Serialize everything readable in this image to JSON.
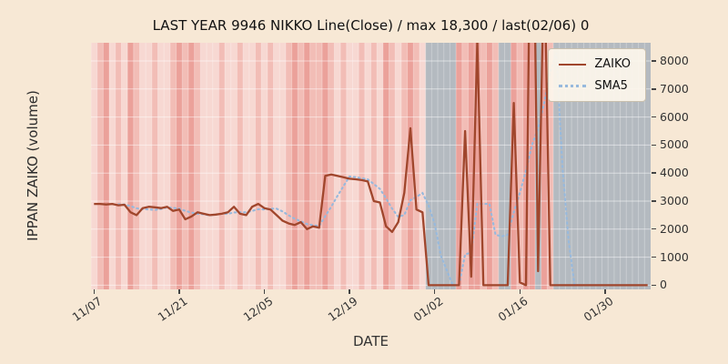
{
  "colors": {
    "figure_bg": "#f7e8d5",
    "tick_text": "#333333",
    "grid": "#ffffff"
  },
  "chart_data": {
    "type": "line",
    "title": "LAST YEAR 9946 NIKKO Line(Close) / max 18,300 / last(02/06) 0",
    "xlabel": "DATE",
    "ylabel": "IPPAN ZAIKO (volume)",
    "x_start": "11/07",
    "x_end": "02/06",
    "xticks": [
      "11/07",
      "11/21",
      "12/05",
      "12/19",
      "01/02",
      "01/16",
      "01/30"
    ],
    "xtick_days": [
      0,
      14,
      28,
      42,
      56,
      70,
      84
    ],
    "yticks": [
      0,
      1000,
      2000,
      3000,
      4000,
      5000,
      6000,
      7000,
      8000
    ],
    "ylim": [
      -150,
      8650
    ],
    "grid": true,
    "legend_position": "upper right",
    "max_value": 18300,
    "last_value": 0,
    "series": [
      {
        "name": "ZAIKO",
        "color": "#a0462c",
        "style": "solid",
        "values": [
          2900,
          2900,
          2880,
          2900,
          2850,
          2870,
          2600,
          2500,
          2750,
          2800,
          2780,
          2750,
          2800,
          2650,
          2700,
          2350,
          2450,
          2600,
          2550,
          2500,
          2520,
          2550,
          2600,
          2800,
          2550,
          2500,
          2800,
          2900,
          2750,
          2700,
          2500,
          2300,
          2200,
          2150,
          2250,
          2000,
          2100,
          2050,
          3900,
          3950,
          3900,
          3850,
          3800,
          3780,
          3750,
          3700,
          3000,
          2950,
          2100,
          1900,
          2250,
          3300,
          5600,
          2700,
          2600,
          0,
          0,
          0,
          0,
          0,
          0,
          5500,
          300,
          8700,
          0,
          0,
          0,
          0,
          0,
          6500,
          100,
          0,
          18300,
          500,
          12000,
          0,
          0,
          0,
          0,
          0,
          0,
          0,
          0,
          0,
          0,
          0,
          0,
          0,
          0,
          0,
          0,
          0
        ]
      },
      {
        "name": "SMA5",
        "color": "#97b9dd",
        "style": "dotted",
        "values": [
          null,
          null,
          null,
          null,
          2886,
          2880,
          2820,
          2744,
          2714,
          2704,
          2686,
          2716,
          2776,
          2756,
          2736,
          2650,
          2590,
          2550,
          2530,
          2490,
          2524,
          2544,
          2544,
          2594,
          2604,
          2600,
          2650,
          2710,
          2700,
          2730,
          2730,
          2630,
          2490,
          2370,
          2280,
          2180,
          2140,
          2110,
          2460,
          2800,
          3180,
          3530,
          3880,
          3856,
          3816,
          3776,
          3606,
          3436,
          3100,
          2730,
          2440,
          2500,
          3030,
          3150,
          3290,
          2840,
          2180,
          1060,
          520,
          0,
          0,
          1100,
          1160,
          2900,
          2900,
          2900,
          1800,
          1740,
          1800,
          2600,
          3300,
          4100,
          5000,
          5600,
          6500,
          7600,
          8300,
          4200,
          1600,
          0,
          0,
          0,
          0,
          0,
          0,
          0,
          0,
          0,
          0,
          0,
          0,
          0
        ]
      }
    ],
    "background_bands": {
      "palette": {
        "1": "#f7d8d2",
        "2": "#f2bdb6",
        "3": "#eba19a",
        "g": "#b4bac0"
      },
      "day_codes": "1231213211211232321112112112121123232232121121213212321ggggg3233232gg3233g32gggggggggggggggg"
    }
  }
}
